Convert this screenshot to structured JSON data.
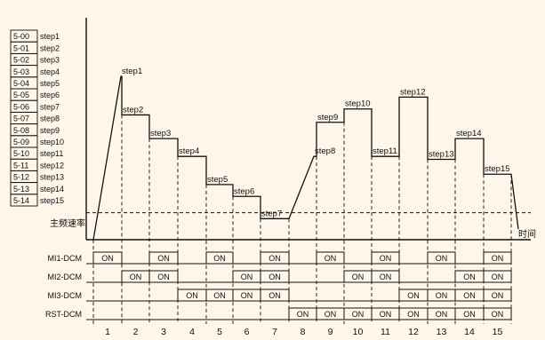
{
  "background_color": "#FDF6E9",
  "line_color": "#111111",
  "table": [
    {
      "code": "5-00",
      "step": "step1"
    },
    {
      "code": "5-01",
      "step": "step2"
    },
    {
      "code": "5-02",
      "step": "step3"
    },
    {
      "code": "5-03",
      "step": "step4"
    },
    {
      "code": "5-04",
      "step": "step5"
    },
    {
      "code": "5-05",
      "step": "step6"
    },
    {
      "code": "5-06",
      "step": "step7"
    },
    {
      "code": "5-07",
      "step": "step8"
    },
    {
      "code": "5-08",
      "step": "step9"
    },
    {
      "code": "5-09",
      "step": "step10"
    },
    {
      "code": "5-10",
      "step": "step11"
    },
    {
      "code": "5-11",
      "step": "step12"
    },
    {
      "code": "5-12",
      "step": "step13"
    },
    {
      "code": "5-13",
      "step": "step14"
    },
    {
      "code": "5-14",
      "step": "step15"
    }
  ],
  "base_label": "主频速率",
  "time_label": "时间",
  "step_labels": [
    "step1",
    "step2",
    "step3",
    "step4",
    "step5",
    "step6",
    "step7",
    "step8",
    "step9",
    "step10",
    "step11",
    "step12",
    "step13",
    "step14",
    "step15"
  ],
  "step_levels": [
    100,
    74,
    58,
    46,
    27,
    19,
    4,
    46,
    69,
    78,
    46,
    86,
    44,
    58,
    34
  ],
  "base_level": 8,
  "signals": [
    {
      "label": "MI1-DCM",
      "on": [
        1,
        0,
        1,
        0,
        1,
        0,
        1,
        0,
        1,
        0,
        1,
        0,
        1,
        0,
        1
      ]
    },
    {
      "label": "MI2-DCM",
      "on": [
        0,
        1,
        1,
        0,
        0,
        1,
        1,
        0,
        0,
        1,
        1,
        0,
        0,
        1,
        1
      ]
    },
    {
      "label": "MI3-DCM",
      "on": [
        0,
        0,
        0,
        1,
        1,
        1,
        1,
        0,
        0,
        0,
        0,
        1,
        1,
        1,
        1
      ]
    },
    {
      "label": "RST-DCM",
      "on": [
        0,
        0,
        0,
        0,
        0,
        0,
        0,
        1,
        1,
        1,
        1,
        1,
        1,
        1,
        1
      ]
    }
  ],
  "on_text": "ON",
  "step_numbers": [
    "1",
    "2",
    "3",
    "4",
    "5",
    "6",
    "7",
    "8",
    "9",
    "10",
    "11",
    "12",
    "13",
    "14",
    "15"
  ]
}
